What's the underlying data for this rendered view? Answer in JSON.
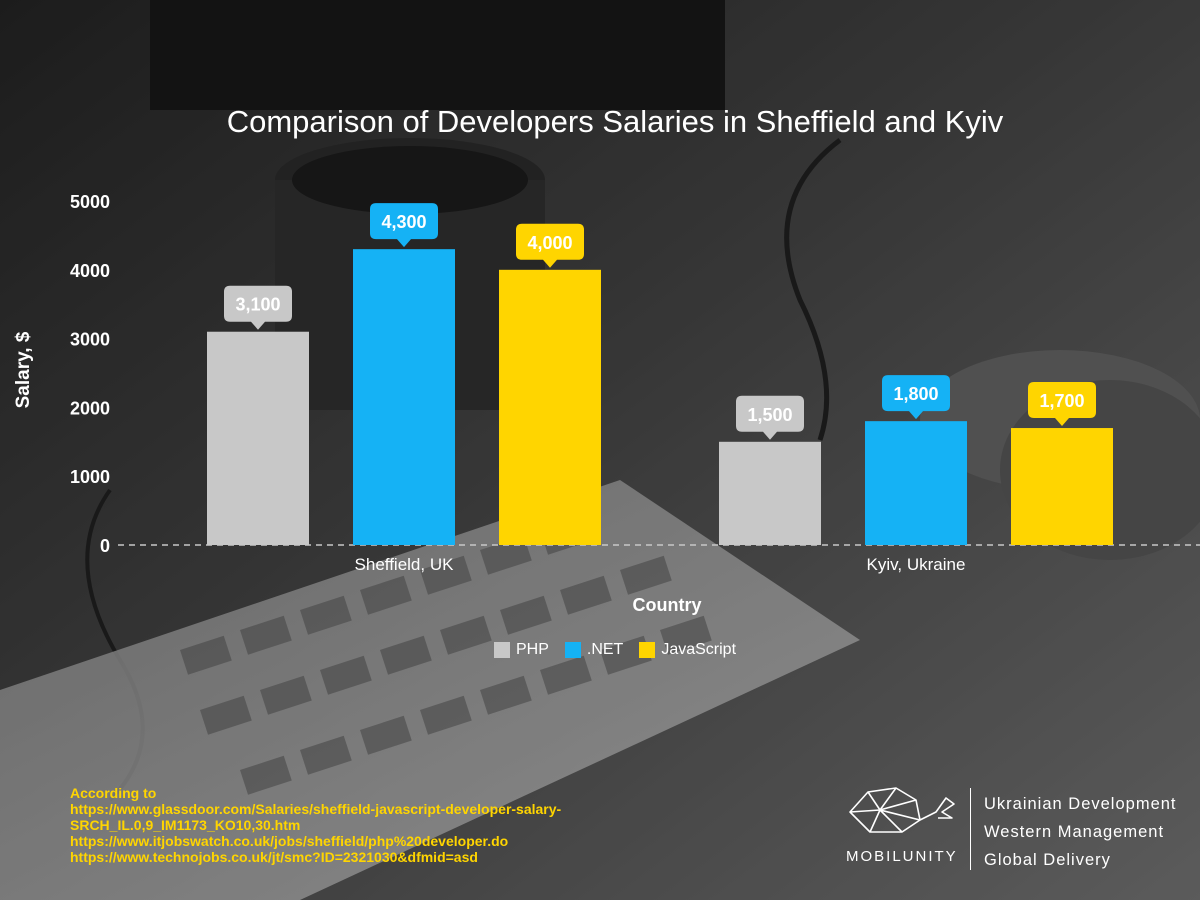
{
  "chart_data": {
    "type": "bar",
    "title": "Comparison of Developers Salaries in Sheffield and Kyiv",
    "xlabel": "Country",
    "ylabel": "Salary, $",
    "categories": [
      "Sheffield, UK",
      "Kyiv, Ukraine"
    ],
    "series": [
      {
        "name": "PHP",
        "color": "#c8c8c8",
        "values": [
          3100,
          1500
        ],
        "labels": [
          "3,100",
          "1,500"
        ]
      },
      {
        "name": ".NET",
        "color": "#15b2f5",
        "values": [
          4300,
          1800
        ],
        "labels": [
          "4,300",
          "1,800"
        ]
      },
      {
        "name": "JavaScript",
        "color": "#ffd500",
        "values": [
          4000,
          1700
        ],
        "labels": [
          "4,000",
          "1,700"
        ]
      }
    ],
    "yticks": [
      0,
      1000,
      2000,
      3000,
      4000,
      5000
    ],
    "ylim": [
      0,
      5000
    ],
    "grid": false,
    "legend": "bottom"
  },
  "source": {
    "lines": [
      "According to",
      "https://www.glassdoor.com/Salaries/sheffield-javascript-developer-salary-",
      "SRCH_IL.0,9_IM1173_KO10,30.htm",
      "https://www.itjobswatch.co.uk/jobs/sheffield/php%20developer.do",
      "https://www.technojobs.co.uk/jt/smc?ID=2321030&dfmid=asd"
    ]
  },
  "brand": {
    "name": "MOBILUNITY",
    "logo_icon": "whale-logo-icon",
    "tagline": [
      "Ukrainian Development",
      "Western Management",
      "Global Delivery"
    ]
  }
}
